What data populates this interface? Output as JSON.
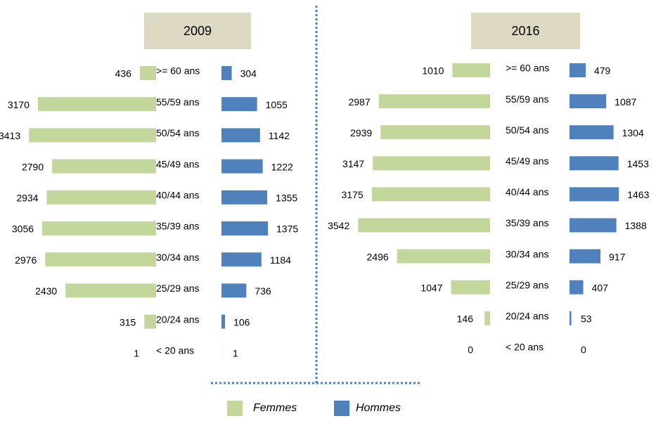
{
  "chart_data": [
    {
      "type": "pyramid",
      "title": "2009",
      "categories": [
        ">= 60 ans",
        "55/59 ans",
        "50/54 ans",
        "45/49 ans",
        "40/44 ans",
        "35/39 ans",
        "30/34 ans",
        "25/29 ans",
        "20/24 ans",
        "< 20 ans"
      ],
      "series": [
        {
          "name": "Femmes",
          "color": "#c3d69b",
          "values": [
            436,
            3170,
            3413,
            2790,
            2934,
            3056,
            2976,
            2430,
            315,
            1
          ]
        },
        {
          "name": "Hommes",
          "color": "#4f81bd",
          "values": [
            304,
            1055,
            1142,
            1222,
            1355,
            1375,
            1184,
            736,
            106,
            1
          ]
        }
      ]
    },
    {
      "type": "pyramid",
      "title": "2016",
      "categories": [
        ">= 60 ans",
        "55/59 ans",
        "50/54 ans",
        "45/49 ans",
        "40/44 ans",
        "35/39 ans",
        "30/34 ans",
        "25/29 ans",
        "20/24 ans",
        "< 20 ans"
      ],
      "series": [
        {
          "color": "#c3d69b",
          "values": [
            1010,
            2987,
            2939,
            3147,
            3175,
            3542,
            2496,
            1047,
            146,
            0
          ]
        },
        {
          "color": "#4f81bd",
          "values": [
            479,
            1087,
            1304,
            1453,
            1463,
            1388,
            917,
            407,
            53,
            0
          ]
        }
      ]
    }
  ]
}
